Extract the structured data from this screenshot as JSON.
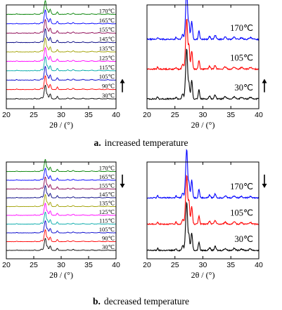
{
  "panels": [
    {
      "caption_letter": "a.",
      "caption_text": "increased temperature",
      "arrow": "up",
      "charts": [
        {
          "type": "line",
          "xlabel": "2θ / (°)",
          "xlim": [
            20,
            40
          ],
          "xticks": [
            20,
            25,
            30,
            35,
            40
          ],
          "stack": "bottom-to-top",
          "series": [
            {
              "name": "30℃",
              "color": "#000000"
            },
            {
              "name": "90℃",
              "color": "#ff0000"
            },
            {
              "name": "105℃",
              "color": "#0000cc"
            },
            {
              "name": "115℃",
              "color": "#00a8a8"
            },
            {
              "name": "125℃",
              "color": "#ff00ff"
            },
            {
              "name": "135℃",
              "color": "#a0a000"
            },
            {
              "name": "145℃",
              "color": "#000080"
            },
            {
              "name": "155℃",
              "color": "#8b0050"
            },
            {
              "name": "165℃",
              "color": "#0000ff"
            },
            {
              "name": "170℃",
              "color": "#008000"
            }
          ]
        },
        {
          "type": "line",
          "xlabel": "2θ / (°)",
          "xlim": [
            20,
            40
          ],
          "xticks": [
            20,
            25,
            30,
            35,
            40
          ],
          "stack": "bottom-to-top",
          "series": [
            {
              "name": "30℃",
              "color": "#000000"
            },
            {
              "name": "105℃",
              "color": "#ff0000"
            },
            {
              "name": "170℃",
              "color": "#0000ff"
            }
          ]
        }
      ]
    },
    {
      "caption_letter": "b.",
      "caption_text": "decreased temperature",
      "arrow": "down",
      "charts": [
        {
          "type": "line",
          "xlabel": "2θ / (°)",
          "xlim": [
            20,
            40
          ],
          "xticks": [
            20,
            25,
            30,
            35,
            40
          ],
          "stack": "bottom-to-top",
          "series": [
            {
              "name": "30℃",
              "color": "#000000"
            },
            {
              "name": "90℃",
              "color": "#ff0000"
            },
            {
              "name": "105℃",
              "color": "#0000cc"
            },
            {
              "name": "115℃",
              "color": "#00a8a8"
            },
            {
              "name": "125℃",
              "color": "#ff00ff"
            },
            {
              "name": "135℃",
              "color": "#a0a000"
            },
            {
              "name": "145℃",
              "color": "#000080"
            },
            {
              "name": "155℃",
              "color": "#8b0050"
            },
            {
              "name": "165℃",
              "color": "#0000ff"
            },
            {
              "name": "170℃",
              "color": "#008000"
            }
          ]
        },
        {
          "type": "line",
          "xlabel": "2θ / (°)",
          "xlim": [
            20,
            40
          ],
          "xticks": [
            20,
            25,
            30,
            35,
            40
          ],
          "stack": "bottom-to-top",
          "series": [
            {
              "name": "30℃",
              "color": "#000000"
            },
            {
              "name": "105℃",
              "color": "#ff0000"
            },
            {
              "name": "170℃",
              "color": "#0000ff"
            }
          ]
        }
      ]
    }
  ],
  "chart_data": [
    {
      "type": "line",
      "title": "",
      "xlabel": "2θ / (°)",
      "xlim": [
        20,
        40
      ],
      "series_names": [
        "30℃",
        "90℃",
        "105℃",
        "115℃",
        "125℃",
        "135℃",
        "145℃",
        "155℃",
        "165℃",
        "170℃"
      ],
      "main_peaks_2theta": [
        26.9,
        27.1,
        27.5,
        28.0,
        29.3
      ]
    },
    {
      "type": "line",
      "title": "",
      "xlabel": "2θ / (°)",
      "xlim": [
        20,
        40
      ],
      "series_names": [
        "30℃",
        "105℃",
        "170℃"
      ],
      "main_peaks_2theta": [
        26.9,
        27.1,
        27.5,
        28.0,
        29.3
      ]
    },
    {
      "type": "line",
      "title": "",
      "xlabel": "2θ / (°)",
      "xlim": [
        20,
        40
      ],
      "series_names": [
        "30℃",
        "90℃",
        "105℃",
        "115℃",
        "125℃",
        "135℃",
        "145℃",
        "155℃",
        "165℃",
        "170℃"
      ],
      "main_peaks_2theta": [
        26.9,
        27.1,
        27.5,
        28.0,
        29.3
      ]
    },
    {
      "type": "line",
      "title": "",
      "xlabel": "2θ / (°)",
      "xlim": [
        20,
        40
      ],
      "series_names": [
        "30℃",
        "105℃",
        "170℃"
      ],
      "main_peaks_2theta": [
        26.9,
        27.1,
        27.5,
        28.0,
        29.3
      ]
    }
  ]
}
